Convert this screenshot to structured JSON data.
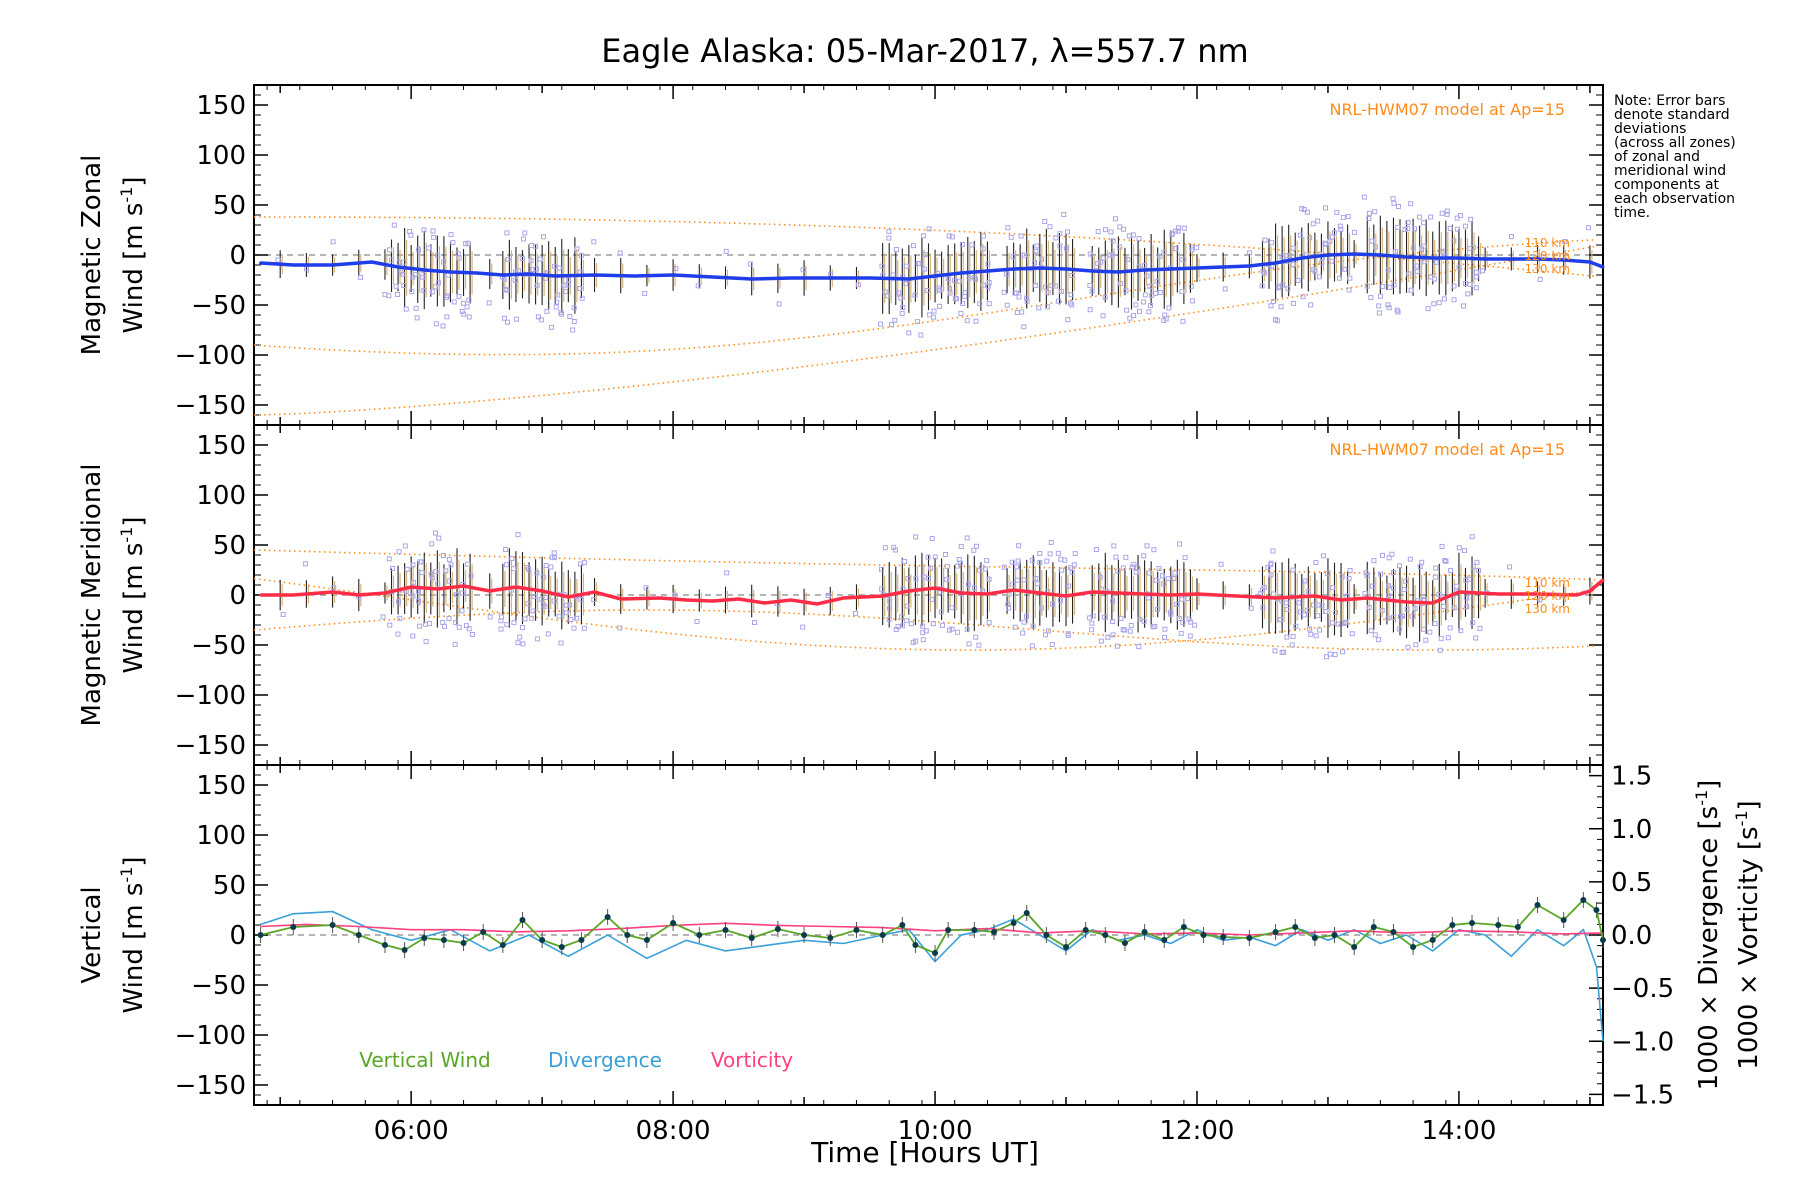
{
  "chart_data": {
    "type": "line",
    "title": "Eagle Alaska: 05-Mar-2017, λ=557.7 nm",
    "note": [
      "Note: Error bars",
      "denote standard",
      "deviations",
      "(across all zones)",
      "of zonal and",
      "meridional wind",
      "components at",
      "each observation",
      "time."
    ],
    "xlabel": "Time [Hours UT]",
    "xlim": [
      4.8,
      15.1
    ],
    "xticks": [
      6,
      8,
      10,
      12,
      14
    ],
    "xtick_labels": [
      "06:00",
      "08:00",
      "10:00",
      "12:00",
      "14:00"
    ],
    "ylim": [
      -170,
      170
    ],
    "yticks": [
      -150,
      -100,
      -50,
      0,
      50,
      100,
      150
    ],
    "ytick_labels": [
      "−150",
      "−100",
      "−50",
      "0",
      "50",
      "100",
      "150"
    ],
    "panels": [
      {
        "id": "zonal",
        "ylabel_line1": "Magnetic Zonal",
        "ylabel_line2_a": "Wind [m s",
        "ylabel_line2_sup": "-1",
        "ylabel_line2_b": "]",
        "model_label": "NRL-HWM07 model at Ap=15",
        "altitude_labels": [
          "110 km",
          "120 km",
          "130 km"
        ],
        "series_color": "#1f3de8",
        "series": [
          {
            "x": 4.85,
            "y": -8
          },
          {
            "x": 5.1,
            "y": -10
          },
          {
            "x": 5.4,
            "y": -10
          },
          {
            "x": 5.7,
            "y": -7
          },
          {
            "x": 5.9,
            "y": -12
          },
          {
            "x": 6.1,
            "y": -15
          },
          {
            "x": 6.3,
            "y": -17
          },
          {
            "x": 6.5,
            "y": -18
          },
          {
            "x": 6.7,
            "y": -20
          },
          {
            "x": 6.9,
            "y": -19
          },
          {
            "x": 7.1,
            "y": -21
          },
          {
            "x": 7.4,
            "y": -20
          },
          {
            "x": 7.7,
            "y": -21
          },
          {
            "x": 8.0,
            "y": -20
          },
          {
            "x": 8.3,
            "y": -22
          },
          {
            "x": 8.6,
            "y": -24
          },
          {
            "x": 8.9,
            "y": -23
          },
          {
            "x": 9.2,
            "y": -23
          },
          {
            "x": 9.5,
            "y": -23
          },
          {
            "x": 9.8,
            "y": -24
          },
          {
            "x": 10.0,
            "y": -21
          },
          {
            "x": 10.2,
            "y": -18
          },
          {
            "x": 10.4,
            "y": -16
          },
          {
            "x": 10.6,
            "y": -14
          },
          {
            "x": 10.8,
            "y": -13
          },
          {
            "x": 11.0,
            "y": -14
          },
          {
            "x": 11.2,
            "y": -16
          },
          {
            "x": 11.4,
            "y": -17
          },
          {
            "x": 11.6,
            "y": -15
          },
          {
            "x": 11.8,
            "y": -14
          },
          {
            "x": 12.0,
            "y": -13
          },
          {
            "x": 12.2,
            "y": -12
          },
          {
            "x": 12.4,
            "y": -11
          },
          {
            "x": 12.6,
            "y": -8
          },
          {
            "x": 12.8,
            "y": -3
          },
          {
            "x": 13.0,
            "y": 0
          },
          {
            "x": 13.2,
            "y": 1
          },
          {
            "x": 13.4,
            "y": 0
          },
          {
            "x": 13.6,
            "y": -2
          },
          {
            "x": 13.8,
            "y": -3
          },
          {
            "x": 14.0,
            "y": -3
          },
          {
            "x": 14.2,
            "y": -4
          },
          {
            "x": 14.4,
            "y": -4
          },
          {
            "x": 14.6,
            "y": -4
          },
          {
            "x": 14.8,
            "y": -5
          },
          {
            "x": 15.0,
            "y": -7
          },
          {
            "x": 15.1,
            "y": -12
          }
        ]
      },
      {
        "id": "meridional",
        "ylabel_line1": "Magnetic Meridional",
        "ylabel_line2_a": "Wind [m s",
        "ylabel_line2_sup": "-1",
        "ylabel_line2_b": "]",
        "model_label": "NRL-HWM07 model at Ap=15",
        "altitude_labels": [
          "110 km",
          "120 km",
          "130 km"
        ],
        "series_color": "#ff2c48",
        "series": [
          {
            "x": 4.85,
            "y": 0
          },
          {
            "x": 5.1,
            "y": 0
          },
          {
            "x": 5.4,
            "y": 3
          },
          {
            "x": 5.6,
            "y": 0
          },
          {
            "x": 5.8,
            "y": 2
          },
          {
            "x": 6.0,
            "y": 8
          },
          {
            "x": 6.2,
            "y": 6
          },
          {
            "x": 6.4,
            "y": 9
          },
          {
            "x": 6.6,
            "y": 4
          },
          {
            "x": 6.8,
            "y": 8
          },
          {
            "x": 7.0,
            "y": 4
          },
          {
            "x": 7.2,
            "y": -2
          },
          {
            "x": 7.4,
            "y": 3
          },
          {
            "x": 7.6,
            "y": -4
          },
          {
            "x": 7.9,
            "y": -3
          },
          {
            "x": 8.1,
            "y": -5
          },
          {
            "x": 8.3,
            "y": -6
          },
          {
            "x": 8.5,
            "y": -4
          },
          {
            "x": 8.7,
            "y": -8
          },
          {
            "x": 8.9,
            "y": -5
          },
          {
            "x": 9.1,
            "y": -9
          },
          {
            "x": 9.3,
            "y": -3
          },
          {
            "x": 9.6,
            "y": -1
          },
          {
            "x": 9.8,
            "y": 4
          },
          {
            "x": 10.0,
            "y": 7
          },
          {
            "x": 10.2,
            "y": 2
          },
          {
            "x": 10.4,
            "y": 1
          },
          {
            "x": 10.6,
            "y": 5
          },
          {
            "x": 10.8,
            "y": 2
          },
          {
            "x": 11.0,
            "y": -1
          },
          {
            "x": 11.2,
            "y": 3
          },
          {
            "x": 11.4,
            "y": 2
          },
          {
            "x": 11.6,
            "y": 1
          },
          {
            "x": 11.8,
            "y": 0
          },
          {
            "x": 12.0,
            "y": 1
          },
          {
            "x": 12.3,
            "y": -1
          },
          {
            "x": 12.6,
            "y": -3
          },
          {
            "x": 12.9,
            "y": -1
          },
          {
            "x": 13.1,
            "y": -5
          },
          {
            "x": 13.3,
            "y": -3
          },
          {
            "x": 13.6,
            "y": -7
          },
          {
            "x": 13.8,
            "y": -8
          },
          {
            "x": 14.0,
            "y": 3
          },
          {
            "x": 14.3,
            "y": 1
          },
          {
            "x": 14.6,
            "y": 1
          },
          {
            "x": 14.9,
            "y": 0
          },
          {
            "x": 15.0,
            "y": 4
          },
          {
            "x": 15.1,
            "y": 15
          }
        ]
      },
      {
        "id": "vertical",
        "ylabel_line1": "Vertical",
        "ylabel_line2_a": "Wind [m s",
        "ylabel_line2_sup": "-1",
        "ylabel_line2_b": "]",
        "ylabel_color": "#5aa626",
        "y2lim": [
          -1.6,
          1.6
        ],
        "y2ticks": [
          -1.5,
          -1.0,
          -0.5,
          0.0,
          0.5,
          1.0,
          1.5
        ],
        "y2tick_labels": [
          "−1.5",
          "−1.0",
          "−0.5",
          "0.0",
          "0.5",
          "1.0",
          "1.5"
        ],
        "y2label_div": "1000 × Divergence [s",
        "y2label_vort": "1000 × Vorticity [s",
        "y2label_sup": "-1",
        "y2label_close": "]",
        "legend": [
          {
            "name": "Vertical Wind",
            "color": "#5aa626"
          },
          {
            "name": "Divergence",
            "color": "#3aa0d8"
          },
          {
            "name": "Vorticity",
            "color": "#ff3f7f"
          }
        ],
        "vertical_wind": [
          {
            "x": 4.85,
            "y": 0
          },
          {
            "x": 5.1,
            "y": 8
          },
          {
            "x": 5.4,
            "y": 10
          },
          {
            "x": 5.6,
            "y": 0
          },
          {
            "x": 5.8,
            "y": -10
          },
          {
            "x": 5.95,
            "y": -15
          },
          {
            "x": 6.1,
            "y": -3
          },
          {
            "x": 6.25,
            "y": -5
          },
          {
            "x": 6.4,
            "y": -8
          },
          {
            "x": 6.55,
            "y": 3
          },
          {
            "x": 6.7,
            "y": -10
          },
          {
            "x": 6.85,
            "y": 15
          },
          {
            "x": 7.0,
            "y": -5
          },
          {
            "x": 7.15,
            "y": -12
          },
          {
            "x": 7.3,
            "y": -5
          },
          {
            "x": 7.5,
            "y": 18
          },
          {
            "x": 7.65,
            "y": 0
          },
          {
            "x": 7.8,
            "y": -5
          },
          {
            "x": 8.0,
            "y": 12
          },
          {
            "x": 8.2,
            "y": 0
          },
          {
            "x": 8.4,
            "y": 5
          },
          {
            "x": 8.6,
            "y": -3
          },
          {
            "x": 8.8,
            "y": 6
          },
          {
            "x": 9.0,
            "y": 0
          },
          {
            "x": 9.2,
            "y": -3
          },
          {
            "x": 9.4,
            "y": 5
          },
          {
            "x": 9.6,
            "y": 0
          },
          {
            "x": 9.75,
            "y": 10
          },
          {
            "x": 9.85,
            "y": -10
          },
          {
            "x": 10.0,
            "y": -18
          },
          {
            "x": 10.1,
            "y": 5
          },
          {
            "x": 10.3,
            "y": 5
          },
          {
            "x": 10.45,
            "y": 3
          },
          {
            "x": 10.6,
            "y": 12
          },
          {
            "x": 10.7,
            "y": 22
          },
          {
            "x": 10.85,
            "y": 0
          },
          {
            "x": 11.0,
            "y": -12
          },
          {
            "x": 11.15,
            "y": 5
          },
          {
            "x": 11.3,
            "y": 0
          },
          {
            "x": 11.45,
            "y": -8
          },
          {
            "x": 11.6,
            "y": 3
          },
          {
            "x": 11.75,
            "y": -5
          },
          {
            "x": 11.9,
            "y": 8
          },
          {
            "x": 12.05,
            "y": 0
          },
          {
            "x": 12.2,
            "y": -2
          },
          {
            "x": 12.4,
            "y": -3
          },
          {
            "x": 12.6,
            "y": 3
          },
          {
            "x": 12.75,
            "y": 8
          },
          {
            "x": 12.9,
            "y": -3
          },
          {
            "x": 13.05,
            "y": 0
          },
          {
            "x": 13.2,
            "y": -12
          },
          {
            "x": 13.35,
            "y": 8
          },
          {
            "x": 13.5,
            "y": 3
          },
          {
            "x": 13.65,
            "y": -12
          },
          {
            "x": 13.8,
            "y": -5
          },
          {
            "x": 13.95,
            "y": 10
          },
          {
            "x": 14.1,
            "y": 12
          },
          {
            "x": 14.3,
            "y": 10
          },
          {
            "x": 14.45,
            "y": 8
          },
          {
            "x": 14.6,
            "y": 30
          },
          {
            "x": 14.8,
            "y": 15
          },
          {
            "x": 14.95,
            "y": 35
          },
          {
            "x": 15.05,
            "y": 25
          },
          {
            "x": 15.1,
            "y": -5
          }
        ],
        "divergence": [
          {
            "x": 4.85,
            "y": 0.1
          },
          {
            "x": 5.1,
            "y": 0.2
          },
          {
            "x": 5.4,
            "y": 0.22
          },
          {
            "x": 5.7,
            "y": 0.05
          },
          {
            "x": 6.0,
            "y": -0.05
          },
          {
            "x": 6.3,
            "y": 0.05
          },
          {
            "x": 6.6,
            "y": -0.15
          },
          {
            "x": 6.9,
            "y": 0.0
          },
          {
            "x": 7.2,
            "y": -0.2
          },
          {
            "x": 7.5,
            "y": 0.0
          },
          {
            "x": 7.8,
            "y": -0.22
          },
          {
            "x": 8.1,
            "y": -0.05
          },
          {
            "x": 8.4,
            "y": -0.15
          },
          {
            "x": 8.7,
            "y": -0.1
          },
          {
            "x": 9.0,
            "y": -0.05
          },
          {
            "x": 9.3,
            "y": -0.08
          },
          {
            "x": 9.6,
            "y": 0.0
          },
          {
            "x": 9.8,
            "y": 0.05
          },
          {
            "x": 10.0,
            "y": -0.25
          },
          {
            "x": 10.2,
            "y": 0.0
          },
          {
            "x": 10.4,
            "y": 0.05
          },
          {
            "x": 10.6,
            "y": 0.15
          },
          {
            "x": 10.8,
            "y": 0.0
          },
          {
            "x": 11.0,
            "y": -0.15
          },
          {
            "x": 11.2,
            "y": 0.05
          },
          {
            "x": 11.4,
            "y": -0.05
          },
          {
            "x": 11.6,
            "y": 0.0
          },
          {
            "x": 11.8,
            "y": -0.08
          },
          {
            "x": 12.0,
            "y": 0.05
          },
          {
            "x": 12.2,
            "y": -0.05
          },
          {
            "x": 12.4,
            "y": -0.02
          },
          {
            "x": 12.6,
            "y": -0.1
          },
          {
            "x": 12.8,
            "y": 0.05
          },
          {
            "x": 13.0,
            "y": -0.05
          },
          {
            "x": 13.2,
            "y": 0.05
          },
          {
            "x": 13.4,
            "y": -0.08
          },
          {
            "x": 13.6,
            "y": 0.0
          },
          {
            "x": 13.8,
            "y": -0.15
          },
          {
            "x": 14.0,
            "y": 0.05
          },
          {
            "x": 14.2,
            "y": 0.0
          },
          {
            "x": 14.4,
            "y": -0.2
          },
          {
            "x": 14.6,
            "y": 0.05
          },
          {
            "x": 14.8,
            "y": -0.1
          },
          {
            "x": 14.95,
            "y": 0.05
          },
          {
            "x": 15.05,
            "y": -0.3
          },
          {
            "x": 15.1,
            "y": -1.0
          }
        ],
        "vorticity": [
          {
            "x": 4.85,
            "y": 0.08
          },
          {
            "x": 5.2,
            "y": 0.1
          },
          {
            "x": 5.6,
            "y": 0.08
          },
          {
            "x": 6.0,
            "y": 0.05
          },
          {
            "x": 6.4,
            "y": 0.05
          },
          {
            "x": 6.8,
            "y": 0.03
          },
          {
            "x": 7.2,
            "y": 0.04
          },
          {
            "x": 7.6,
            "y": 0.06
          },
          {
            "x": 8.0,
            "y": 0.09
          },
          {
            "x": 8.4,
            "y": 0.11
          },
          {
            "x": 8.8,
            "y": 0.09
          },
          {
            "x": 9.2,
            "y": 0.08
          },
          {
            "x": 9.6,
            "y": 0.07
          },
          {
            "x": 10.0,
            "y": 0.04
          },
          {
            "x": 10.4,
            "y": 0.06
          },
          {
            "x": 10.8,
            "y": 0.02
          },
          {
            "x": 11.2,
            "y": 0.04
          },
          {
            "x": 11.6,
            "y": 0.01
          },
          {
            "x": 12.0,
            "y": 0.02
          },
          {
            "x": 12.4,
            "y": 0.0
          },
          {
            "x": 12.8,
            "y": 0.02
          },
          {
            "x": 13.2,
            "y": 0.04
          },
          {
            "x": 13.6,
            "y": 0.02
          },
          {
            "x": 14.0,
            "y": 0.04
          },
          {
            "x": 14.4,
            "y": 0.03
          },
          {
            "x": 14.8,
            "y": 0.01
          },
          {
            "x": 15.1,
            "y": 0.02
          }
        ]
      }
    ]
  }
}
